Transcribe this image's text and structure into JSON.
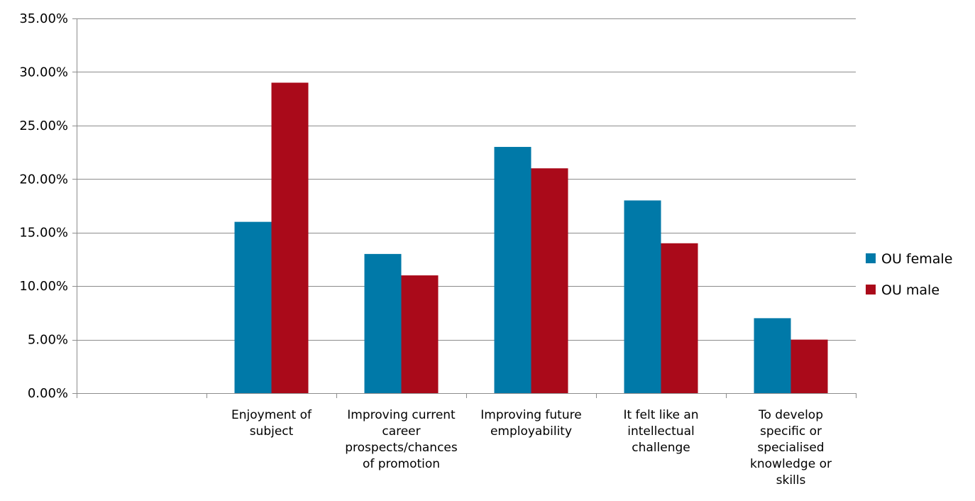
{
  "chart_data": {
    "type": "bar",
    "categories": [
      "",
      "Enjoyment of subject",
      "Improving current career prospects/chances of promotion",
      "Improving future employability",
      "It felt like an intellectual challenge",
      "To develop specific or specialised knowledge or skills"
    ],
    "category_lines": [
      [],
      [
        "Enjoyment of",
        "subject"
      ],
      [
        "Improving current",
        "career",
        "prospects/chances",
        "of promotion"
      ],
      [
        "Improving future",
        "employability"
      ],
      [
        "It felt like an",
        "intellectual",
        "challenge"
      ],
      [
        "To develop",
        "specific or",
        "specialised",
        "knowledge or",
        "skills"
      ]
    ],
    "series": [
      {
        "name": "OU female",
        "color": "#0079a8",
        "values": [
          null,
          0.16,
          0.13,
          0.23,
          0.18,
          0.07
        ]
      },
      {
        "name": "OU male",
        "color": "#aa0a1a",
        "values": [
          null,
          0.29,
          0.11,
          0.21,
          0.14,
          0.05
        ]
      }
    ],
    "ylim": [
      0,
      0.35
    ],
    "yticks": [
      0,
      0.05,
      0.1,
      0.15,
      0.2,
      0.25,
      0.3,
      0.35
    ],
    "ytick_labels": [
      "0.00%",
      "5.00%",
      "10.00%",
      "15.00%",
      "20.00%",
      "25.00%",
      "30.00%",
      "35.00%"
    ],
    "grid": true,
    "legend_position": "right"
  }
}
